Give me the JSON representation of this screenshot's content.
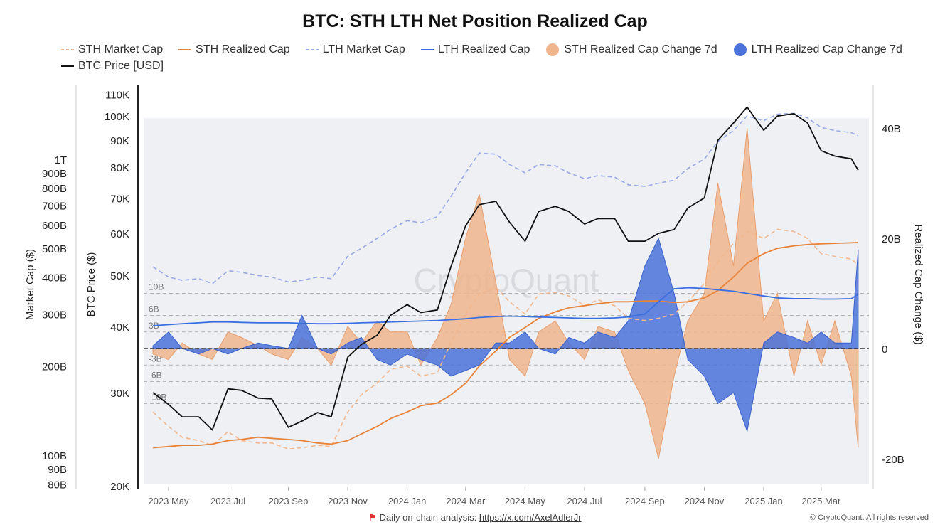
{
  "chart_data": {
    "type": "line",
    "title": "BTC: STH LTH Net Position Realized Cap",
    "legend": [
      {
        "name": "STH Market Cap",
        "color": "#f1b88f",
        "style": "dashed"
      },
      {
        "name": "STH Realized Cap",
        "color": "#e8833a",
        "style": "solid"
      },
      {
        "name": "LTH Market Cap",
        "color": "#9aa8e6",
        "style": "dashed"
      },
      {
        "name": "LTH Realized Cap",
        "color": "#3b6fe0",
        "style": "solid"
      },
      {
        "name": "STH Realized Cap Change 7d",
        "color": "#efb58c",
        "style": "area"
      },
      {
        "name": "LTH Realized Cap Change 7d",
        "color": "#4a72d9",
        "style": "area"
      },
      {
        "name": "BTC Price [USD]",
        "color": "#111111",
        "style": "solid"
      }
    ],
    "legend_placement": "top",
    "axes": {
      "market_cap": {
        "label": "Market Cap ($)",
        "scale": "log",
        "unit": "B USD",
        "ticks": [
          "1T",
          "900B",
          "800B",
          "700B",
          "600B",
          "500B",
          "400B",
          "300B",
          "200B",
          "100B",
          "90B",
          "80B"
        ],
        "tick_values": [
          1000,
          900,
          800,
          700,
          600,
          500,
          400,
          300,
          200,
          100,
          90,
          80
        ]
      },
      "price": {
        "label": "BTC Price ($)",
        "scale": "log",
        "ticks": [
          "110K",
          "100K",
          "90K",
          "80K",
          "70K",
          "60K",
          "50K",
          "40K",
          "30K",
          "20K"
        ],
        "tick_values": [
          110000,
          100000,
          90000,
          80000,
          70000,
          60000,
          50000,
          40000,
          30000,
          20000
        ]
      },
      "change": {
        "label": "Realized Cap Change ($)",
        "ticks": [
          "40B",
          "20B",
          "0",
          "-20B"
        ],
        "tick_values": [
          40,
          20,
          0,
          -20
        ],
        "ref_lines": [
          "10B",
          "6B",
          "3B",
          "-3B",
          "-6B",
          "-10B"
        ],
        "ref_values": [
          10,
          6,
          3,
          -3,
          -6,
          -10
        ]
      },
      "x": {
        "ticks": [
          "2023 May",
          "2023 Jul",
          "2023 Sep",
          "2023 Nov",
          "2024 Jan",
          "2024 Mar",
          "2024 May",
          "2024 Jul",
          "2024 Sep",
          "2024 Nov",
          "2025 Jan",
          "2025 Mar"
        ],
        "tick_dates": [
          "2023-05-01",
          "2023-07-01",
          "2023-09-01",
          "2023-11-01",
          "2024-01-01",
          "2024-03-01",
          "2024-05-01",
          "2024-07-01",
          "2024-09-01",
          "2024-11-01",
          "2025-01-01",
          "2025-03-01"
        ]
      }
    },
    "x": [
      "2023-04-15",
      "2023-05-01",
      "2023-05-15",
      "2023-06-01",
      "2023-06-15",
      "2023-07-01",
      "2023-07-15",
      "2023-08-01",
      "2023-08-15",
      "2023-09-01",
      "2023-09-15",
      "2023-10-01",
      "2023-10-15",
      "2023-11-01",
      "2023-11-15",
      "2023-12-01",
      "2023-12-15",
      "2024-01-01",
      "2024-01-15",
      "2024-02-01",
      "2024-02-15",
      "2024-03-01",
      "2024-03-15",
      "2024-04-01",
      "2024-04-15",
      "2024-05-01",
      "2024-05-15",
      "2024-06-01",
      "2024-06-15",
      "2024-07-01",
      "2024-07-15",
      "2024-08-01",
      "2024-08-15",
      "2024-09-01",
      "2024-09-15",
      "2024-10-01",
      "2024-10-15",
      "2024-11-01",
      "2024-11-15",
      "2024-12-01",
      "2024-12-15",
      "2025-01-01",
      "2025-01-15",
      "2025-02-01",
      "2025-02-15",
      "2025-03-01",
      "2025-03-15",
      "2025-04-01",
      "2025-04-08"
    ],
    "series": [
      {
        "name": "BTC Price [USD]",
        "axis": "price",
        "values": [
          30000,
          28500,
          27000,
          27000,
          25500,
          30500,
          30300,
          29300,
          29200,
          25800,
          26500,
          27500,
          27000,
          35000,
          37000,
          38500,
          42000,
          44000,
          42500,
          43000,
          52000,
          62000,
          68000,
          69000,
          63000,
          58000,
          66000,
          67500,
          66000,
          62500,
          64000,
          64000,
          58000,
          58000,
          60000,
          61000,
          67000,
          70000,
          90000,
          97000,
          104000,
          94000,
          100000,
          101000,
          97000,
          86000,
          84000,
          83000,
          79000
        ]
      },
      {
        "name": "STH Realized Cap",
        "axis": "market_cap",
        "values": [
          106,
          107,
          108,
          108,
          109,
          112,
          113,
          115,
          114,
          113,
          112,
          110,
          109,
          112,
          118,
          125,
          133,
          140,
          147,
          150,
          160,
          175,
          200,
          225,
          250,
          270,
          290,
          305,
          315,
          320,
          325,
          330,
          330,
          332,
          332,
          328,
          330,
          340,
          360,
          400,
          445,
          480,
          500,
          510,
          515,
          518,
          520,
          522,
          523
        ]
      },
      {
        "name": "LTH Realized Cap",
        "axis": "market_cap",
        "values": [
          274,
          276,
          278,
          280,
          282,
          282,
          281,
          280,
          280,
          280,
          279,
          278,
          278,
          279,
          280,
          281,
          282,
          283,
          284,
          285,
          287,
          289,
          292,
          294,
          295,
          294,
          293,
          292,
          291,
          290,
          290,
          291,
          293,
          300,
          330,
          365,
          368,
          366,
          362,
          358,
          352,
          345,
          340,
          338,
          338,
          337,
          337,
          338,
          350
        ]
      },
      {
        "name": "STH Market Cap",
        "axis": "market_cap",
        "values": [
          140,
          125,
          115,
          112,
          108,
          120,
          112,
          110,
          110,
          105,
          106,
          108,
          107,
          140,
          160,
          175,
          195,
          200,
          185,
          190,
          240,
          300,
          350,
          370,
          330,
          300,
          350,
          355,
          345,
          320,
          335,
          320,
          290,
          285,
          290,
          300,
          330,
          380,
          450,
          520,
          570,
          540,
          580,
          570,
          540,
          480,
          470,
          460,
          440
        ]
      },
      {
        "name": "LTH Market Cap",
        "axis": "market_cap",
        "values": [
          433,
          400,
          390,
          395,
          380,
          420,
          415,
          405,
          400,
          385,
          390,
          400,
          395,
          470,
          500,
          540,
          580,
          620,
          610,
          640,
          750,
          900,
          1050,
          1040,
          960,
          900,
          960,
          950,
          900,
          860,
          880,
          870,
          820,
          810,
          830,
          850,
          930,
          1000,
          1150,
          1250,
          1400,
          1350,
          1420,
          1430,
          1380,
          1280,
          1250,
          1230,
          1200
        ]
      },
      {
        "name": "STH Realized Cap Change 7d",
        "axis": "change",
        "values": [
          -1,
          -2,
          1,
          -1,
          -2,
          3,
          2,
          0.5,
          -1,
          -2,
          2,
          0,
          -3,
          4,
          1,
          5,
          3,
          3,
          -3,
          2,
          8,
          20,
          28,
          12,
          -2,
          -5,
          3,
          5,
          1,
          -2,
          4,
          3,
          -4,
          -10,
          -20,
          -5,
          5,
          10,
          30,
          15,
          40,
          5,
          10,
          -5,
          5,
          -3,
          5,
          -5,
          -18
        ]
      },
      {
        "name": "LTH Realized Cap Change 7d",
        "axis": "change",
        "values": [
          0.5,
          3,
          0,
          -1,
          0,
          -1,
          0,
          1,
          0.5,
          0,
          6,
          0,
          -1,
          1,
          2,
          -2,
          -3,
          -1,
          -2,
          -3,
          -5,
          -4,
          -3,
          1,
          1,
          3,
          0,
          -1,
          2,
          1,
          3,
          2,
          5,
          15,
          20,
          10,
          -2,
          -5,
          -10,
          -8,
          -15,
          1,
          3,
          2,
          1,
          3,
          1,
          1,
          18
        ]
      }
    ],
    "grid": true
  },
  "watermark": "CryptoQuant",
  "footer": {
    "text": "Daily on-chain analysis: ",
    "link": "https://x.com/AxelAdlerJr",
    "copyright": "© CryptoQuant. All rights reserved"
  }
}
